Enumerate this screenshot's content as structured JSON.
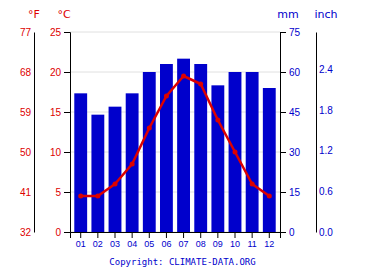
{
  "chart_data": {
    "type": "bar",
    "categories": [
      "01",
      "02",
      "03",
      "04",
      "05",
      "06",
      "07",
      "08",
      "09",
      "10",
      "11",
      "12"
    ],
    "series": [
      {
        "type": "bar",
        "color": "#0000cc",
        "axis": "y2",
        "values": [
          52,
          44,
          47,
          52,
          60,
          63,
          65,
          63,
          55,
          60,
          60,
          54
        ]
      },
      {
        "type": "line",
        "color": "#dd0000",
        "marker": "circle",
        "values": [
          4.5,
          4.5,
          6,
          8.5,
          13,
          17,
          19.5,
          18.5,
          14,
          10,
          6,
          4.5
        ]
      }
    ],
    "ylabel": "°C",
    "ylim": [
      0,
      25
    ],
    "yticks": [
      0,
      5,
      10,
      15,
      20,
      25
    ],
    "y2label": "mm",
    "y2lim": [
      0,
      75
    ],
    "y2ticks": [
      0,
      15,
      30,
      45,
      60,
      75
    ],
    "y3label": "°F",
    "y3ticks": [
      {
        "value": 0,
        "label": "32"
      },
      {
        "value": 5,
        "label": "41"
      },
      {
        "value": 10,
        "label": "50"
      },
      {
        "value": 15,
        "label": "59"
      },
      {
        "value": 20,
        "label": "68"
      },
      {
        "value": 25,
        "label": "77"
      }
    ],
    "y4label": "inch",
    "y4ticks": [
      {
        "value": 0,
        "label": "0.0"
      },
      {
        "value": 15.24,
        "label": "0.6"
      },
      {
        "value": 30.48,
        "label": "1.2"
      },
      {
        "value": 45.72,
        "label": "1.8"
      },
      {
        "value": 60.96,
        "label": "2.4"
      }
    ],
    "grid": true,
    "annotations": [
      "Copyright: CLIMATE-DATA.ORG"
    ]
  }
}
